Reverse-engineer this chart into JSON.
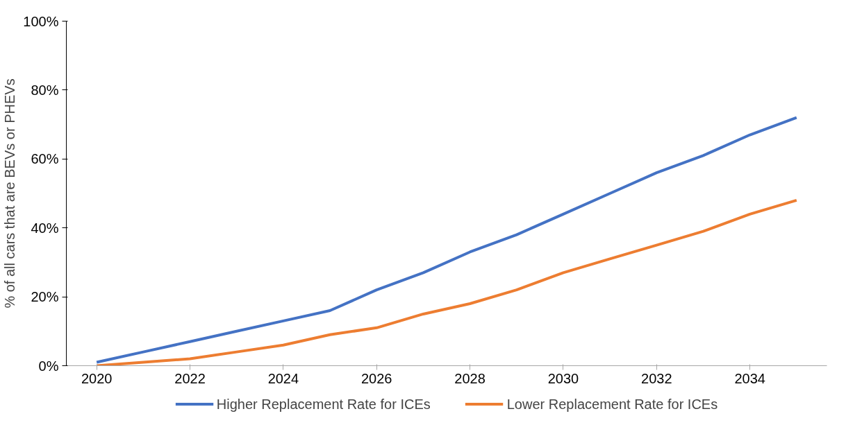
{
  "chart_data": {
    "type": "line",
    "ylabel": "% of all cars that are BEVs or PHEVs",
    "x": [
      2020,
      2021,
      2022,
      2023,
      2024,
      2025,
      2026,
      2027,
      2028,
      2029,
      2030,
      2031,
      2032,
      2033,
      2034,
      2035
    ],
    "series": [
      {
        "name": "Higher Replacement Rate for ICEs",
        "color": "#4472c4",
        "values": [
          1,
          4,
          7,
          10,
          13,
          16,
          22,
          27,
          33,
          38,
          44,
          50,
          56,
          61,
          67,
          72
        ]
      },
      {
        "name": "Lower Replacement Rate for ICEs",
        "color": "#ed7d31",
        "values": [
          0,
          1,
          2,
          4,
          6,
          9,
          11,
          15,
          18,
          22,
          27,
          31,
          35,
          39,
          44,
          48
        ]
      }
    ],
    "xlim": [
      2019.35,
      2035.65
    ],
    "xticks": [
      2020,
      2022,
      2024,
      2026,
      2028,
      2030,
      2032,
      2034
    ],
    "ylim": [
      0,
      100
    ],
    "yticks": [
      {
        "value": 0,
        "label": "0%"
      },
      {
        "value": 20,
        "label": "20%"
      },
      {
        "value": 40,
        "label": "40%"
      },
      {
        "value": 60,
        "label": "60%"
      },
      {
        "value": 80,
        "label": "80%"
      },
      {
        "value": 100,
        "label": "100%"
      }
    ],
    "grid": false,
    "legend": "bottom",
    "marker": "none",
    "line_style": "solid"
  }
}
